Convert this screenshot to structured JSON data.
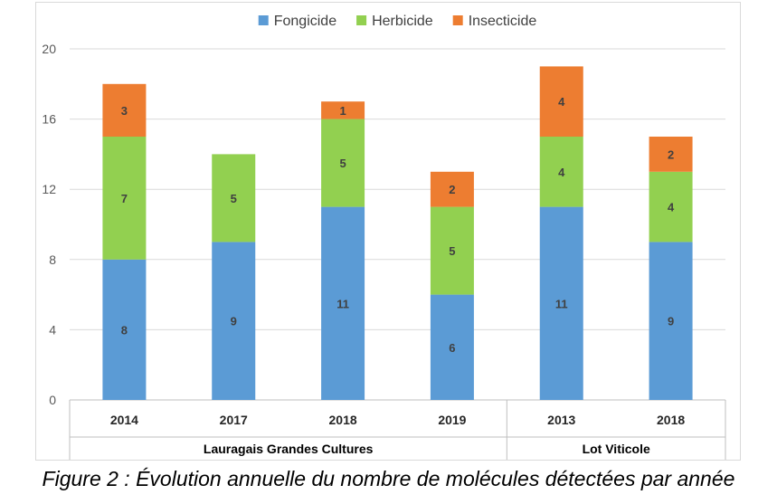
{
  "chart_data": {
    "type": "bar",
    "stacked": true,
    "categories": [
      "2014",
      "2017",
      "2018",
      "2019",
      "2013",
      "2018"
    ],
    "groups": [
      {
        "label": "Lauragais Grandes Cultures",
        "count": 4
      },
      {
        "label": "Lot Viticole",
        "count": 2
      }
    ],
    "series": [
      {
        "name": "Fongicide",
        "color": "#5b9bd5",
        "values": [
          8,
          9,
          11,
          6,
          11,
          9
        ]
      },
      {
        "name": "Herbicide",
        "color": "#92d050",
        "values": [
          7,
          5,
          5,
          5,
          4,
          4
        ]
      },
      {
        "name": "Insecticide",
        "color": "#ed7d31",
        "values": [
          3,
          0,
          1,
          2,
          4,
          2
        ]
      }
    ],
    "ylim": [
      0,
      20
    ],
    "yticks": [
      0,
      4,
      8,
      12,
      16,
      20
    ],
    "grid": true,
    "legend": "top-center",
    "title": "",
    "xlabel": "",
    "ylabel": ""
  },
  "caption": "Figure 2 : Évolution annuelle du nombre de molécules détectées par année"
}
